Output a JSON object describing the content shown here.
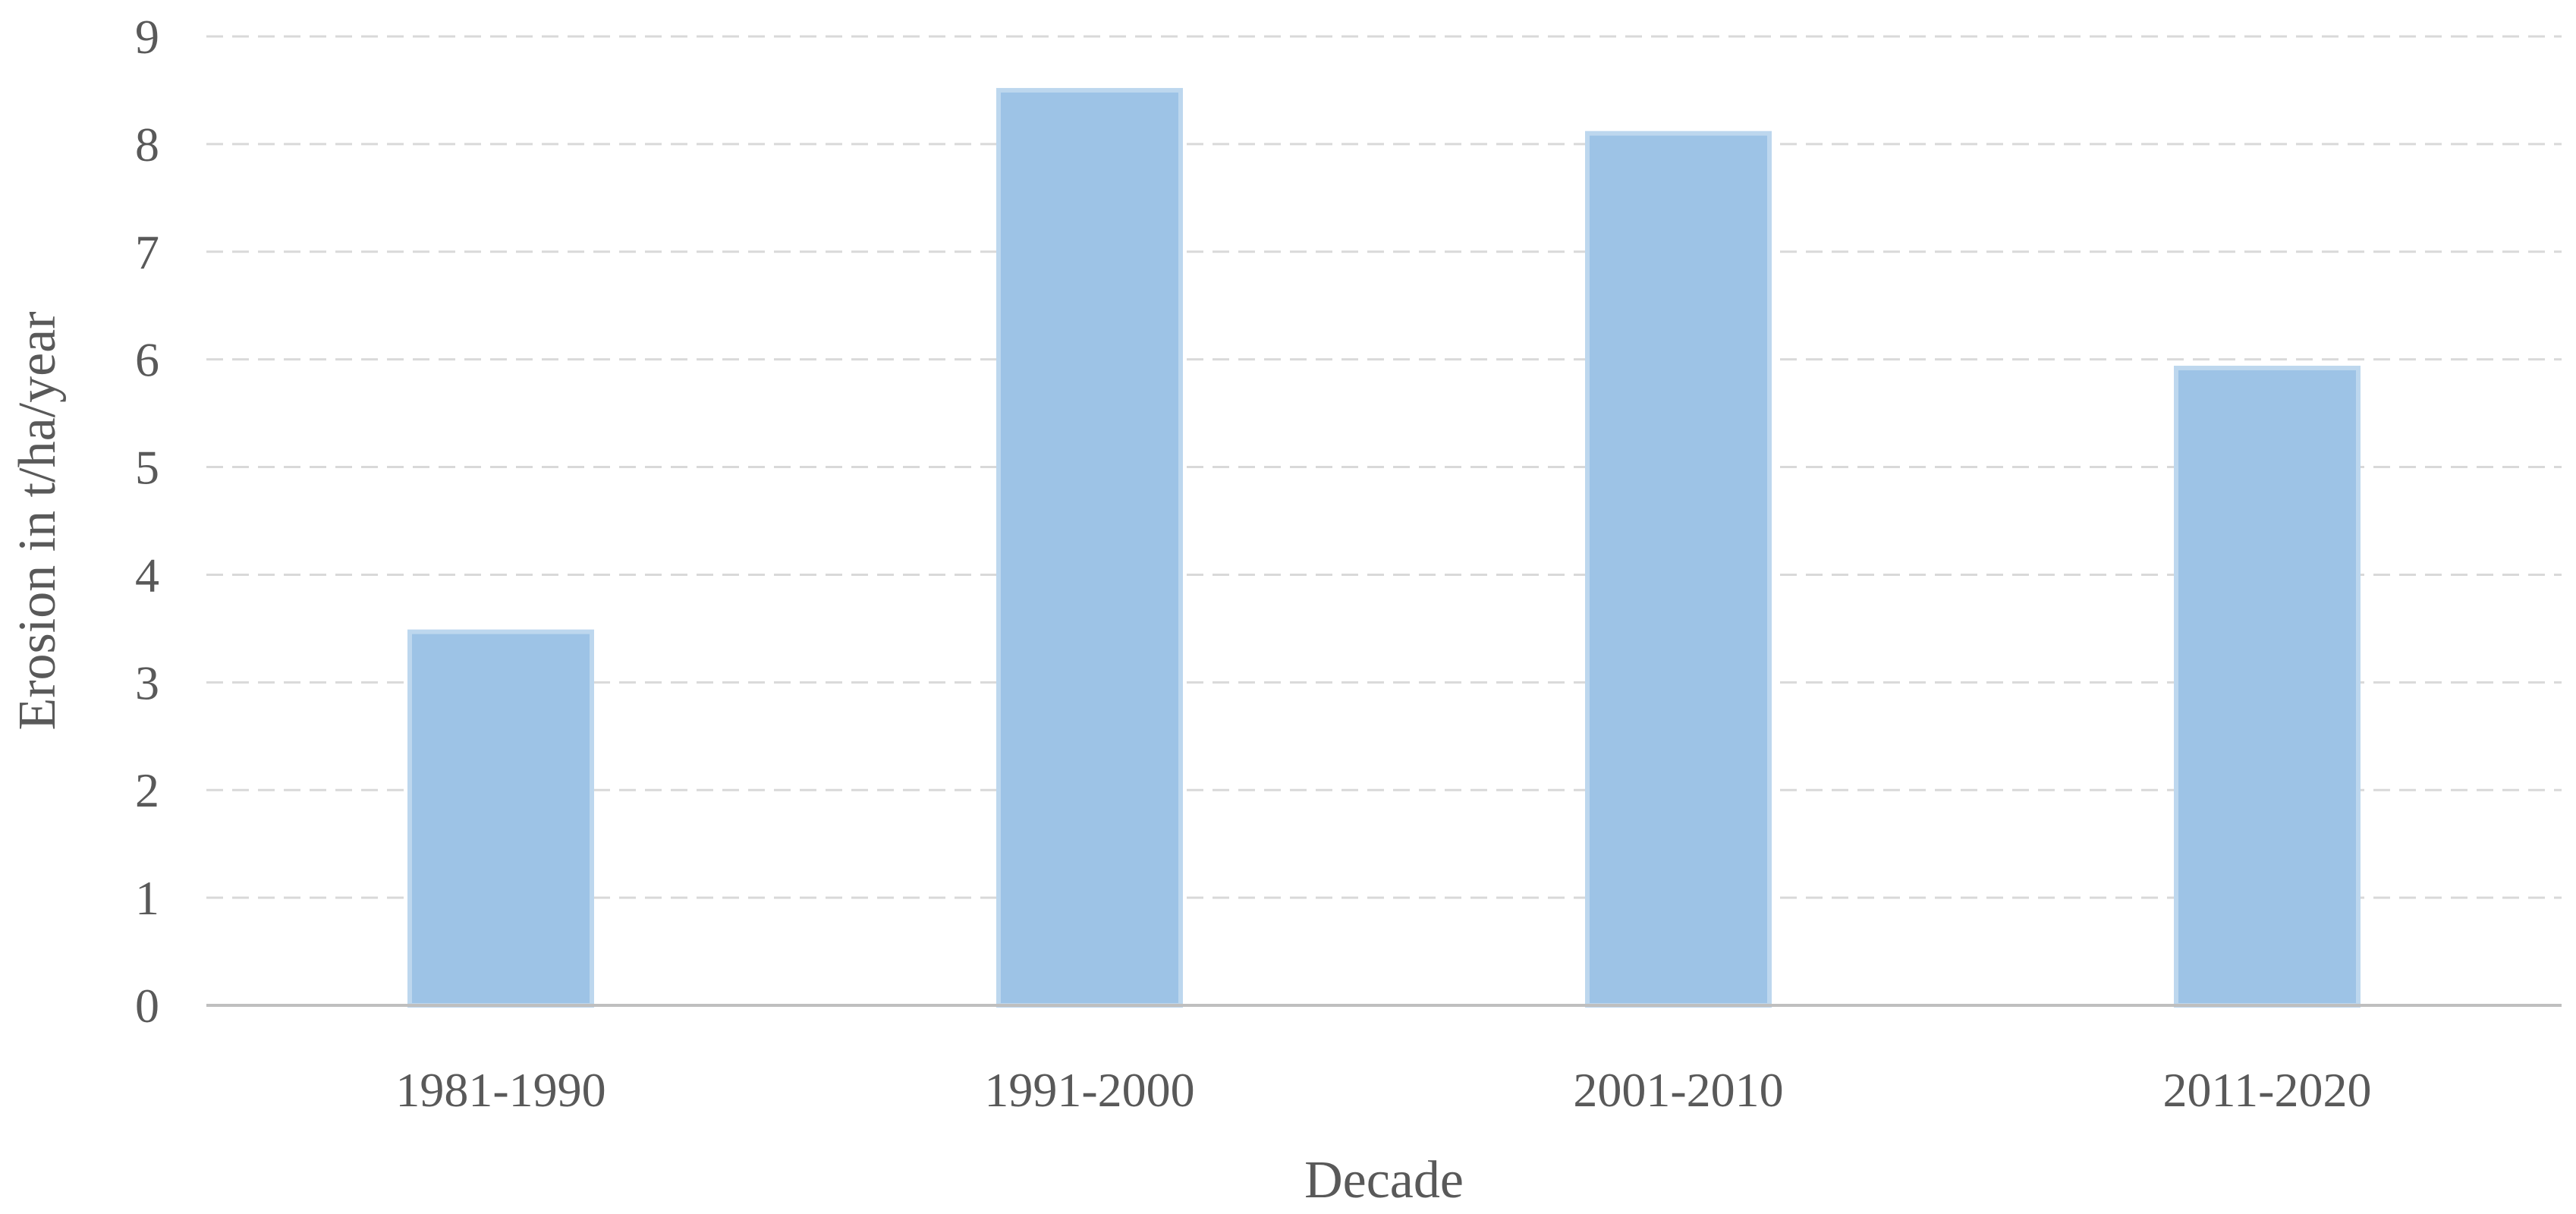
{
  "chart_data": {
    "type": "bar",
    "title": "",
    "xlabel": "Decade",
    "ylabel": "Erosion in t/ha/year",
    "categories": [
      "1981-1990",
      "1991-2000",
      "2001-2010",
      "2011-2020"
    ],
    "values": [
      3.47,
      8.5,
      8.1,
      5.92
    ],
    "ylim": [
      0,
      9
    ],
    "yticks": [
      0,
      1,
      2,
      3,
      4,
      5,
      6,
      7,
      8,
      9
    ],
    "grid": true,
    "legend": "none",
    "colors": {
      "bar_fill": "#9dc3e6",
      "bar_edge": "#bdd7ee",
      "text": "#595959",
      "grid": "#d9d9d9",
      "axis": "#bfbfbf"
    }
  }
}
